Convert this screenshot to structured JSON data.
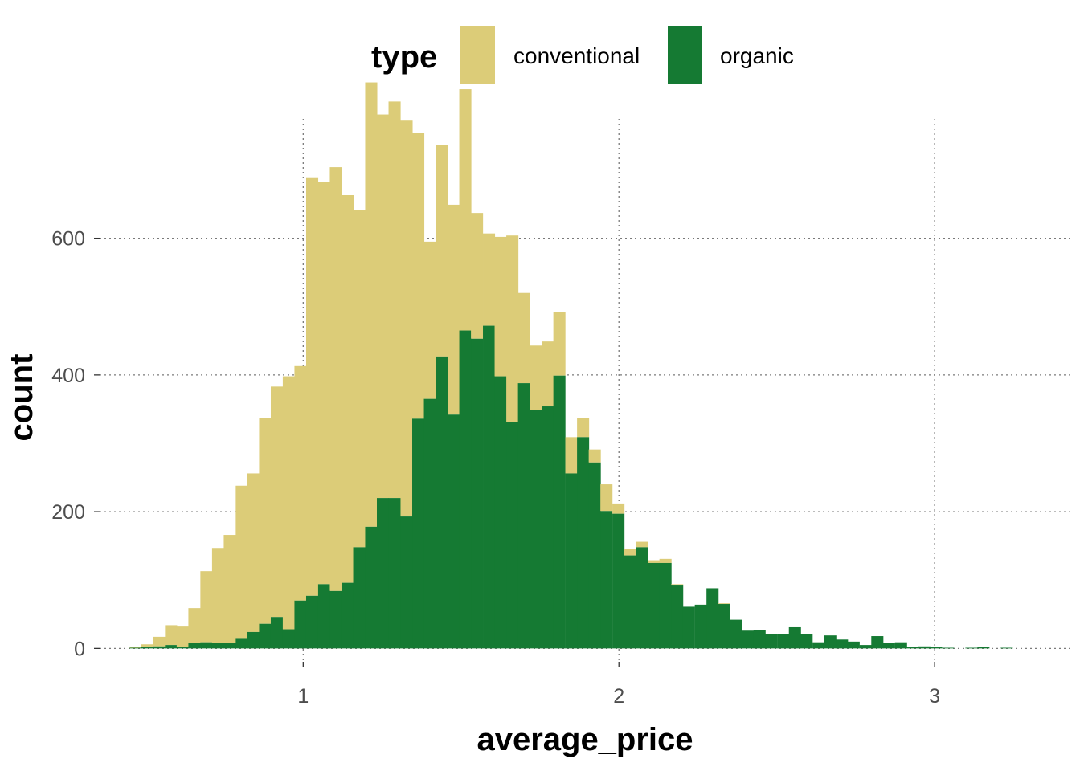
{
  "chart_data": {
    "type": "bar",
    "subtype": "stacked-histogram",
    "xlabel": "average_price",
    "ylabel": "count",
    "legend": {
      "title": "type",
      "position": "top",
      "entries": [
        {
          "name": "conventional",
          "color": "#dccc78"
        },
        {
          "name": "organic",
          "color": "#157a33"
        }
      ]
    },
    "xlim": [
      0.34,
      3.44
    ],
    "ylim": [
      -36,
      784
    ],
    "x_ticks": [
      1,
      2,
      3
    ],
    "x_tick_labels": [
      "1",
      "2",
      "3"
    ],
    "y_ticks": [
      0,
      200,
      400,
      600
    ],
    "y_tick_labels": [
      "0",
      "200",
      "400",
      "600"
    ],
    "grid": true,
    "bin_width": 0.0373,
    "x": [
      0.469,
      0.506,
      0.544,
      0.581,
      0.618,
      0.655,
      0.693,
      0.73,
      0.767,
      0.805,
      0.842,
      0.879,
      0.916,
      0.954,
      0.991,
      1.028,
      1.066,
      1.103,
      1.14,
      1.177,
      1.215,
      1.252,
      1.289,
      1.327,
      1.364,
      1.401,
      1.438,
      1.476,
      1.513,
      1.55,
      1.588,
      1.625,
      1.662,
      1.699,
      1.737,
      1.774,
      1.811,
      1.849,
      1.886,
      1.923,
      1.96,
      1.998,
      2.035,
      2.072,
      2.11,
      2.147,
      2.184,
      2.221,
      2.259,
      2.296,
      2.333,
      2.371,
      2.408,
      2.445,
      2.482,
      2.52,
      2.557,
      2.594,
      2.632,
      2.669,
      2.706,
      2.743,
      2.781,
      2.818,
      2.855,
      2.893,
      2.93,
      2.967,
      3.004,
      3.042,
      3.079,
      3.116,
      3.154,
      3.191,
      3.228,
      3.265
    ],
    "series": [
      {
        "name": "conventional",
        "values": [
          1,
          4,
          14,
          29,
          30,
          51,
          104,
          139,
          158,
          224,
          232,
          301,
          337,
          370,
          343,
          611,
          588,
          620,
          567,
          493,
          650,
          561,
          580,
          579,
          418,
          230,
          310,
          307,
          353,
          184,
          135,
          204,
          273,
          132,
          94,
          95,
          93,
          53,
          28,
          19,
          39,
          15,
          10,
          8,
          4,
          6,
          2,
          0,
          0,
          0,
          1,
          0,
          0,
          0,
          0,
          0,
          0,
          0,
          0,
          0,
          0,
          0,
          0,
          0,
          0,
          0,
          0,
          0,
          0,
          0,
          0,
          0,
          0,
          0,
          0,
          0
        ]
      },
      {
        "name": "organic",
        "values": [
          1,
          2,
          3,
          5,
          2,
          8,
          9,
          8,
          8,
          14,
          24,
          36,
          46,
          28,
          70,
          77,
          94,
          84,
          96,
          148,
          178,
          220,
          220,
          193,
          336,
          365,
          427,
          342,
          465,
          453,
          472,
          398,
          331,
          388,
          349,
          354,
          399,
          256,
          309,
          272,
          201,
          197,
          136,
          148,
          125,
          125,
          92,
          61,
          64,
          88,
          65,
          42,
          26,
          27,
          21,
          21,
          31,
          21,
          9,
          19,
          13,
          10,
          5,
          18,
          8,
          9,
          2,
          3,
          2,
          1,
          0,
          1,
          2,
          0,
          1,
          0
        ]
      }
    ]
  }
}
